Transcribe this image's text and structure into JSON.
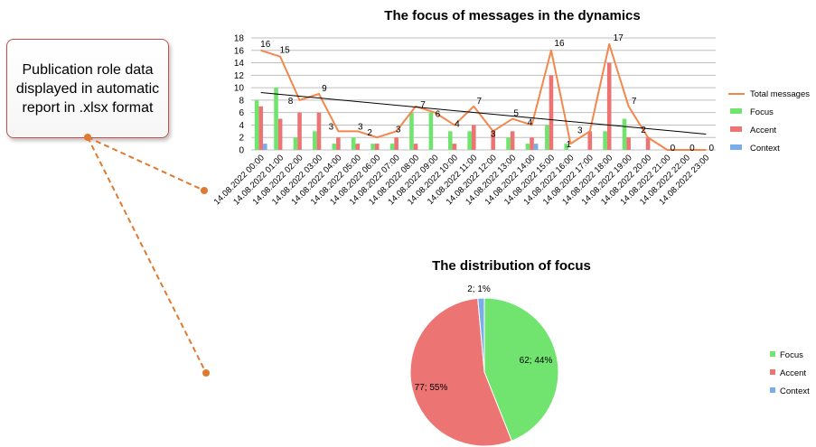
{
  "callout": {
    "text": "Publication role data displayed in automatic report in .xlsx format"
  },
  "colors": {
    "total": "#f4874b",
    "focus": "#71e46f",
    "accent": "#ec7473",
    "context": "#7aaee9",
    "trend": "#000000",
    "grid": "#bfbfbf",
    "callout_line": "#e07a30"
  },
  "chart_data": [
    {
      "type": "bar",
      "title": "The focus of messages in the dynamics",
      "ylim": [
        0,
        18
      ],
      "y_ticks": [
        0,
        2,
        4,
        6,
        8,
        10,
        12,
        14,
        16,
        18
      ],
      "grid": true,
      "legend_position": "right",
      "trendline": true,
      "categories": [
        "14.08.2022 00:00",
        "14.08.2022 01:00",
        "14.08.2022 02:00",
        "14.08.2022 03:00",
        "14.08.2022 04:00",
        "14.08.2022 05:00",
        "14.08.2022 06:00",
        "14.08.2022 07:00",
        "14.08.2022 08:00",
        "14.08.2022 09:00",
        "14.08.2022 10:00",
        "14.08.2022 11:00",
        "14.08.2022 12:00",
        "14.08.2022 13:00",
        "14.08.2022 14:00",
        "14.08.2022 15:00",
        "14.08.2022 16:00",
        "14.08.2022 17:00",
        "14.08.2022 18:00",
        "14.08.2022 19:00",
        "14.08.2022 20:00",
        "14.08.2022 21:00",
        "14.08.2022 22:00",
        "14.08.2022 23:00"
      ],
      "series": [
        {
          "name": "Total messages",
          "type": "line",
          "values": [
            16,
            15,
            8,
            9,
            3,
            3,
            2,
            3,
            7,
            6,
            4,
            7,
            3,
            5,
            4,
            16,
            1,
            3,
            17,
            7,
            2,
            0,
            0,
            0
          ]
        },
        {
          "name": "Focus",
          "type": "bar",
          "values": [
            8,
            10,
            2,
            3,
            1,
            2,
            1,
            1,
            6,
            6,
            3,
            3,
            0,
            2,
            1,
            4,
            1,
            0,
            3,
            5,
            0,
            0,
            0,
            0
          ]
        },
        {
          "name": "Accent",
          "type": "bar",
          "values": [
            7,
            5,
            6,
            6,
            2,
            1,
            1,
            2,
            1,
            0,
            1,
            4,
            3,
            3,
            2,
            12,
            0,
            3,
            14,
            2,
            2,
            0,
            0,
            0
          ]
        },
        {
          "name": "Context",
          "type": "bar",
          "values": [
            1,
            0,
            0,
            0,
            0,
            0,
            0,
            0,
            0,
            0,
            0,
            0,
            0,
            0,
            1,
            0,
            0,
            0,
            0,
            0,
            0,
            0,
            0,
            0
          ]
        }
      ],
      "data_labels": [
        "16",
        "15",
        "8",
        "9",
        "3",
        "3",
        "2",
        "3",
        "7",
        "6",
        "4",
        "7",
        "3",
        "5",
        "4",
        "16",
        "1",
        "3",
        "17",
        "7",
        "2",
        "0",
        "0",
        "0"
      ]
    },
    {
      "type": "pie",
      "title": "The distribution of focus",
      "legend_position": "right",
      "slices": [
        {
          "name": "Focus",
          "value": 62,
          "label": "62; 44%"
        },
        {
          "name": "Accent",
          "value": 77,
          "label": "77; 55%"
        },
        {
          "name": "Context",
          "value": 2,
          "label": "2; 1%"
        }
      ]
    }
  ]
}
